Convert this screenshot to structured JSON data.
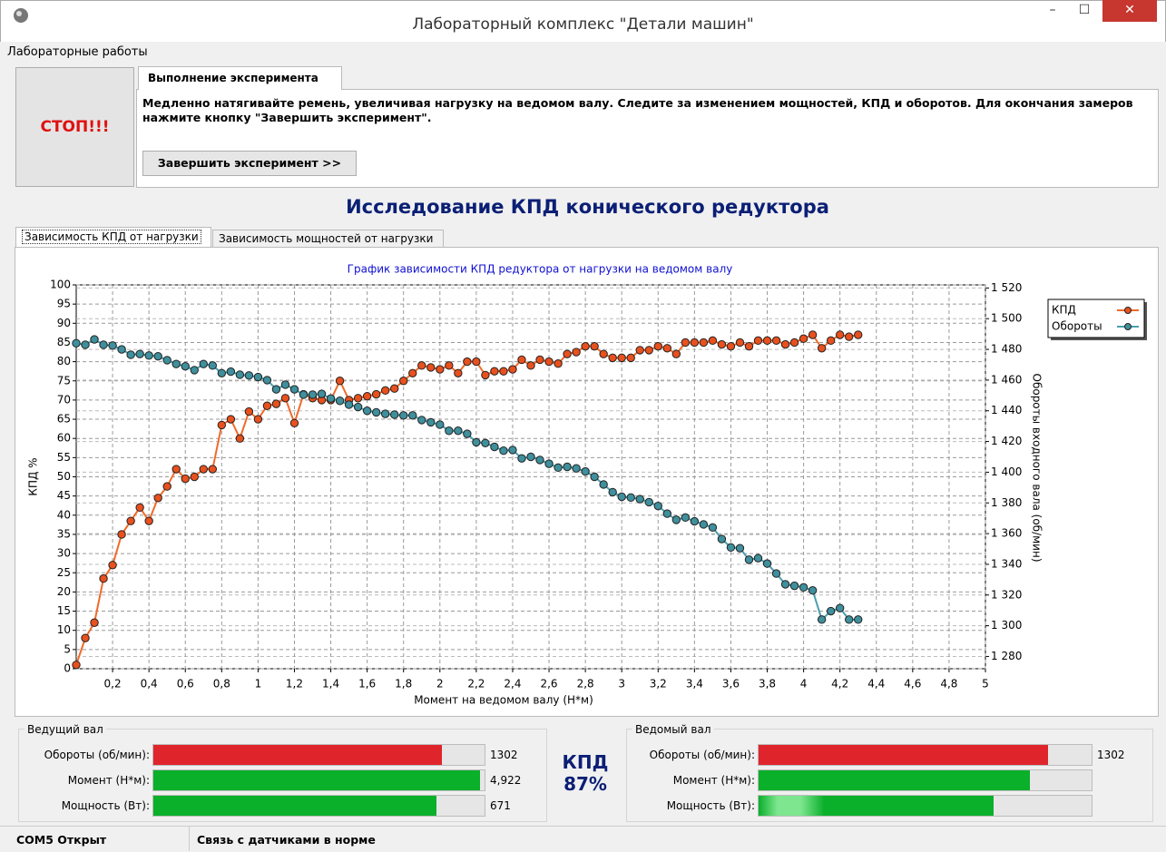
{
  "window": {
    "title": "Лабораторный комплекс \"Детали машин\""
  },
  "menu": [
    "Лабораторные работы"
  ],
  "stop_button": "СТОП!!!",
  "tab": "Выполнение эксперимента",
  "instruction": "Медленно натягивайте ремень, увеличивая нагрузку на ведомом валу. Следите за изменением мощностей, КПД и оборотов.  Для окончания замеров нажмите кнопку \"Завершить эксперимент\".",
  "finish_button": "Завершить эксперимент >>",
  "heading": "Исследование КПД конического редуктора",
  "chart_tabs": [
    "Зависимость КПД от нагрузки",
    "Зависимость мощностей от нагрузки"
  ],
  "chart_data": {
    "type": "line",
    "title": "График зависимости КПД редуктора от нагрузки на ведомом валу",
    "x_label": "Момент на ведомом валу (Н*м)",
    "y_label": "КПД %",
    "y2_label": "Обороты входного вала (об/мин)",
    "grid": true,
    "legend": "top-right",
    "xlim": [
      0,
      5
    ],
    "xticks": [
      {
        "value": 0.2,
        "label": "0,2"
      },
      {
        "value": 0.4,
        "label": "0,4"
      },
      {
        "value": 0.6,
        "label": "0,6"
      },
      {
        "value": 0.8,
        "label": "0,8"
      },
      1,
      {
        "value": 1.2,
        "label": "1,2"
      },
      {
        "value": 1.4,
        "label": "1,4"
      },
      {
        "value": 1.6,
        "label": "1,6"
      },
      {
        "value": 1.8,
        "label": "1,8"
      },
      2,
      {
        "value": 2.2,
        "label": "2,2"
      },
      {
        "value": 2.4,
        "label": "2,4"
      },
      {
        "value": 2.6,
        "label": "2,6"
      },
      {
        "value": 2.8,
        "label": "2,8"
      },
      3,
      {
        "value": 3.2,
        "label": "3,2"
      },
      {
        "value": 3.4,
        "label": "3,4"
      },
      {
        "value": 3.6,
        "label": "3,6"
      },
      {
        "value": 3.8,
        "label": "3,8"
      },
      4,
      {
        "value": 4.2,
        "label": "4,2"
      },
      {
        "value": 4.4,
        "label": "4,4"
      },
      {
        "value": 4.6,
        "label": "4,6"
      },
      {
        "value": 4.8,
        "label": "4,8"
      },
      5
    ],
    "ylim": [
      0,
      100
    ],
    "yticks": [
      0,
      5,
      10,
      15,
      20,
      25,
      30,
      35,
      40,
      45,
      50,
      55,
      60,
      65,
      70,
      75,
      80,
      85,
      90,
      95,
      100
    ],
    "y2lim": [
      1272,
      1522
    ],
    "y2ticks": [
      {
        "value": 1280,
        "label": "1 280"
      },
      {
        "value": 1300,
        "label": "1 300"
      },
      {
        "value": 1320,
        "label": "1 320"
      },
      {
        "value": 1340,
        "label": "1 340"
      },
      {
        "value": 1360,
        "label": "1 360"
      },
      {
        "value": 1380,
        "label": "1 380"
      },
      {
        "value": 1400,
        "label": "1 400"
      },
      {
        "value": 1420,
        "label": "1 420"
      },
      {
        "value": 1440,
        "label": "1 440"
      },
      {
        "value": 1460,
        "label": "1 460"
      },
      {
        "value": 1480,
        "label": "1 480"
      },
      {
        "value": 1500,
        "label": "1 500"
      },
      {
        "value": 1520,
        "label": "1 520"
      }
    ],
    "x": [
      0,
      0.05,
      0.1,
      0.15,
      0.2,
      0.25,
      0.3,
      0.35,
      0.4,
      0.45,
      0.5,
      0.55,
      0.6,
      0.65,
      0.7,
      0.75,
      0.8,
      0.85,
      0.9,
      0.95,
      1,
      1.05,
      1.1,
      1.15,
      1.2,
      1.25,
      1.3,
      1.35,
      1.4,
      1.45,
      1.5,
      1.55,
      1.6,
      1.65,
      1.7,
      1.75,
      1.8,
      1.85,
      1.9,
      1.95,
      2,
      2.05,
      2.1,
      2.15,
      2.2,
      2.25,
      2.3,
      2.35,
      2.4,
      2.45,
      2.5,
      2.55,
      2.6,
      2.65,
      2.7,
      2.75,
      2.8,
      2.85,
      2.9,
      2.95,
      3,
      3.05,
      3.1,
      3.15,
      3.2,
      3.25,
      3.3,
      3.35,
      3.4,
      3.45,
      3.5,
      3.55,
      3.6,
      3.65,
      3.7,
      3.75,
      3.8,
      3.85,
      3.9,
      3.95,
      4,
      4.05,
      4.1,
      4.15,
      4.2,
      4.25,
      4.3
    ],
    "series": [
      {
        "name": "КПД",
        "color": "#e8501e",
        "line_color": "#f06a2a",
        "values": [
          1,
          8,
          12,
          23.5,
          27,
          35,
          38.5,
          42,
          38.5,
          44.5,
          47.5,
          52,
          49.5,
          50,
          52,
          52,
          63.5,
          65,
          60,
          67,
          65,
          68.5,
          69,
          70.5,
          64,
          71.5,
          70.5,
          70,
          70,
          75,
          70,
          70.5,
          71,
          71.5,
          72.5,
          73,
          75,
          77,
          79,
          78.5,
          78,
          79,
          77,
          80,
          80,
          76.5,
          77.5,
          77.5,
          78,
          80.5,
          79,
          80.5,
          80,
          79.5,
          82,
          82.5,
          84,
          84,
          82,
          81,
          81,
          81,
          83,
          83,
          84,
          83.5,
          82,
          85,
          85,
          85,
          85.5,
          84.5,
          84,
          85,
          84,
          85.5,
          85.5,
          85.5,
          84.5,
          85,
          86,
          87,
          83.5,
          85.5,
          87,
          86.5,
          87
        ]
      },
      {
        "name": "Обороты",
        "color": "#3f8f9c",
        "line_color": "#4a9fae",
        "axis": "y2",
        "values": [
          1484,
          1483,
          1486.5,
          1483,
          1482.5,
          1480,
          1476.5,
          1477,
          1476,
          1475.5,
          1473,
          1470.5,
          1469,
          1466.5,
          1470.5,
          1469.5,
          1464.5,
          1465.5,
          1463.5,
          1463,
          1462,
          1460,
          1454,
          1457,
          1454,
          1450.5,
          1450.5,
          1451,
          1448,
          1446.5,
          1444,
          1442.5,
          1440,
          1439,
          1438,
          1437.5,
          1437,
          1437,
          1434,
          1432.5,
          1431,
          1427,
          1427,
          1425,
          1419.5,
          1419,
          1416.5,
          1414,
          1414.5,
          1409,
          1410,
          1408,
          1405.5,
          1403,
          1403.5,
          1402.5,
          1400.5,
          1397,
          1392,
          1387,
          1384,
          1383.5,
          1382.5,
          1380.5,
          1378,
          1373,
          1369,
          1370.5,
          1368,
          1366,
          1364,
          1356.5,
          1351,
          1350.5,
          1343,
          1344,
          1340.5,
          1334,
          1327,
          1326,
          1325,
          1323,
          1304,
          1309.5,
          1311.5,
          1304,
          1304
        ]
      }
    ]
  },
  "panels": [
    {
      "title": "Ведущий вал",
      "rows": [
        {
          "label": "Обороты (об/мин):",
          "value": 1302
        },
        {
          "label": "Момент (Н*м):",
          "value": {
            "value": 4.922,
            "label": "4,922"
          }
        },
        {
          "label": "Мощность (Вт):",
          "value": 671
        }
      ]
    },
    {
      "title": "Ведомый вал",
      "rows": [
        {
          "label": "Обороты (об/мин):",
          "value": 1302
        },
        {
          "label": "Момент (Н*м):"
        },
        {
          "label": "Мощность (Вт):"
        }
      ]
    }
  ],
  "kpd": {
    "label": "КПД",
    "value": {
      "value": 87,
      "label": "87%"
    }
  },
  "status": [
    "COM5 Открыт",
    "Связь с датчиками в норме"
  ]
}
